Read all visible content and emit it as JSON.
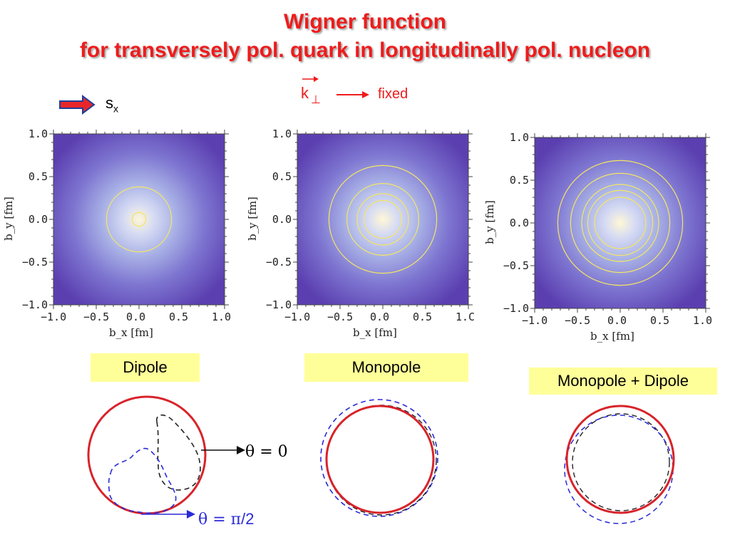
{
  "title": {
    "line1": "Wigner function",
    "line2": "for transversely pol. quark in longitudinally pol. nucleon"
  },
  "header": {
    "spin_label": "s",
    "spin_sub": "x",
    "k_label": "k",
    "k_sub": "⊥",
    "fixed_label": "fixed"
  },
  "colors": {
    "title_red": "#ee1c1c",
    "plot_edge": "#5b3fb0",
    "plot_center": "#fff7d6",
    "contour": "#f5e663",
    "label_bg": "#ffff99",
    "curve_red": "#d8232a",
    "curve_blue": "#2a2ad8",
    "curve_black": "#222222"
  },
  "chart_data": [
    {
      "type": "heatmap",
      "xlabel": "b_x [fm]",
      "ylabel": "b_y [fm]",
      "xlim": [
        -1.0,
        1.0
      ],
      "ylim": [
        -1.0,
        1.0
      ],
      "xticks": [
        "−1.0",
        "−0.5",
        "0.0",
        "0.5",
        "1.0"
      ],
      "yticks": [
        "1.0",
        "0.5",
        "0.0",
        "−0.5",
        "−1.0"
      ],
      "contour_radii": [
        0.08,
        0.38
      ],
      "caption": "Dipole"
    },
    {
      "type": "heatmap",
      "xlabel": "b_x [fm]",
      "ylabel": "b_y [fm]",
      "xlim": [
        -1.0,
        1.0
      ],
      "ylim": [
        -1.0,
        1.0
      ],
      "xticks": [
        "−1.0",
        "−0.5",
        "0.0",
        "0.5",
        "1.C"
      ],
      "yticks": [
        "1.0",
        "0.5",
        "0.0",
        "−0.5",
        "−1.0"
      ],
      "contour_radii": [
        0.22,
        0.3,
        0.42,
        0.63
      ],
      "caption": "Monopole"
    },
    {
      "type": "heatmap",
      "xlabel": "b_x [fm]",
      "ylabel": "b_y [fm]",
      "xlim": [
        -1.0,
        1.0
      ],
      "ylim": [
        -1.0,
        1.0
      ],
      "xticks": [
        "−1.0",
        "−0.5",
        "0.0",
        "0.5",
        "1.0"
      ],
      "yticks": [
        "1.0",
        "0.5",
        "0.0",
        "−0.5",
        "−1.0"
      ],
      "contour_radii": [
        0.3,
        0.38,
        0.45,
        0.58,
        0.73
      ],
      "caption": "Monopole + Dipole"
    }
  ],
  "annotations": {
    "theta0": "θ = 0",
    "theta_pi2_prefix": "θ = ",
    "theta_pi2_pi": "π",
    "theta_pi2_suffix": "/2"
  }
}
